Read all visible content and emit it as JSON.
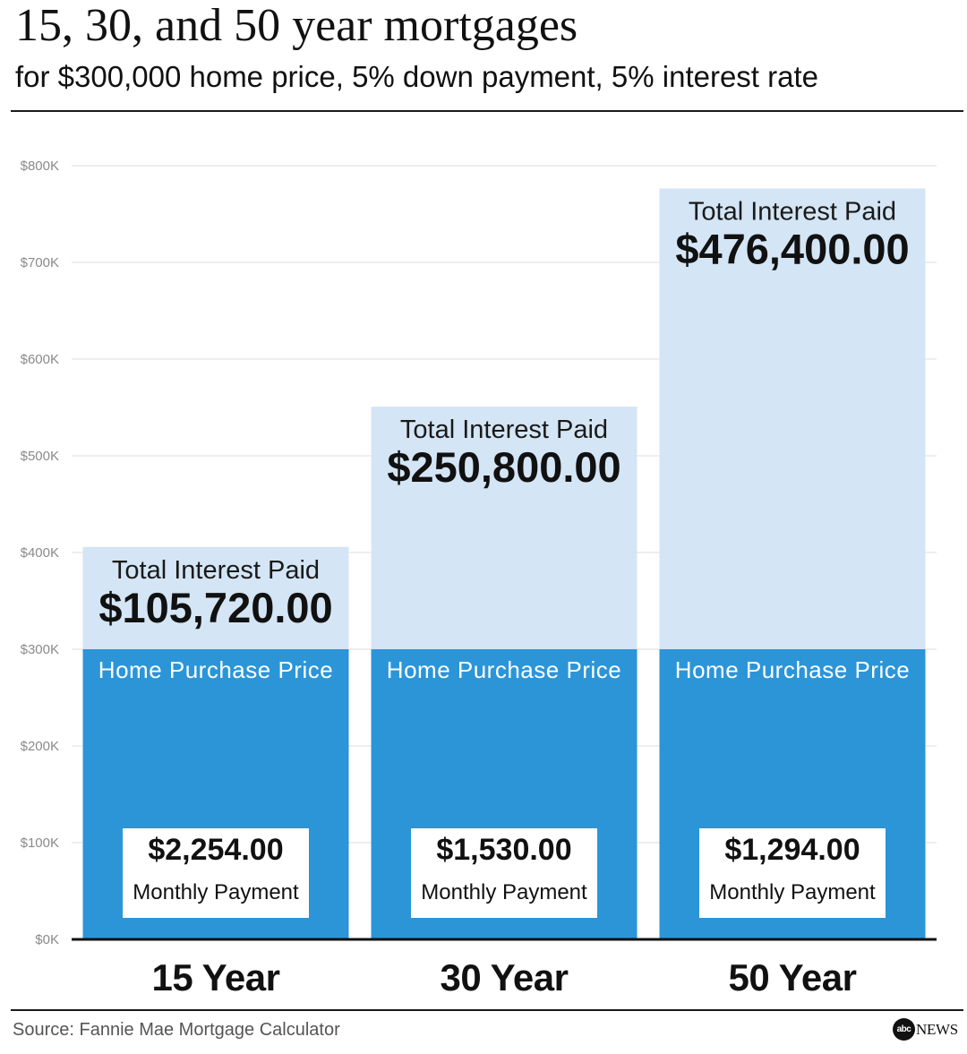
{
  "colors": {
    "principal": "#2b95d8",
    "interest": "#d4e5f5",
    "grid": "#e4e4e4",
    "axis": "#111111",
    "box": "#ffffff"
  },
  "chart_data": {
    "type": "bar",
    "stacked": true,
    "title": "15, 30, and 50 year mortgages",
    "subtitle": "for $300,000 home price, 5% down payment, 5% interest rate",
    "categories": [
      "15 Year",
      "30 Year",
      "50 Year"
    ],
    "series": [
      {
        "name": "Home Purchase Price",
        "values": [
          300000,
          300000,
          300000
        ]
      },
      {
        "name": "Total Interest Paid",
        "values": [
          105720,
          250800,
          476400
        ]
      }
    ],
    "interest_value_labels": [
      "$105,720.00",
      "$250,800.00",
      "$476,400.00"
    ],
    "monthly_payment": {
      "label": "Monthly Payment",
      "values": [
        "$2,254.00",
        "$1,530.00",
        "$1,294.00"
      ]
    },
    "ylim": [
      0,
      800000
    ],
    "yticks": [
      0,
      100000,
      200000,
      300000,
      400000,
      500000,
      600000,
      700000,
      800000
    ],
    "ytick_labels": [
      "$0K",
      "$100K",
      "$200K",
      "$300K",
      "$400K",
      "$500K",
      "$600K",
      "$700K",
      "$800K"
    ],
    "grid": true
  },
  "footer": {
    "source": "Source: Fannie Mae Mortgage Calculator",
    "logo_mark": "abc",
    "logo_wordmark": "NEWS"
  }
}
